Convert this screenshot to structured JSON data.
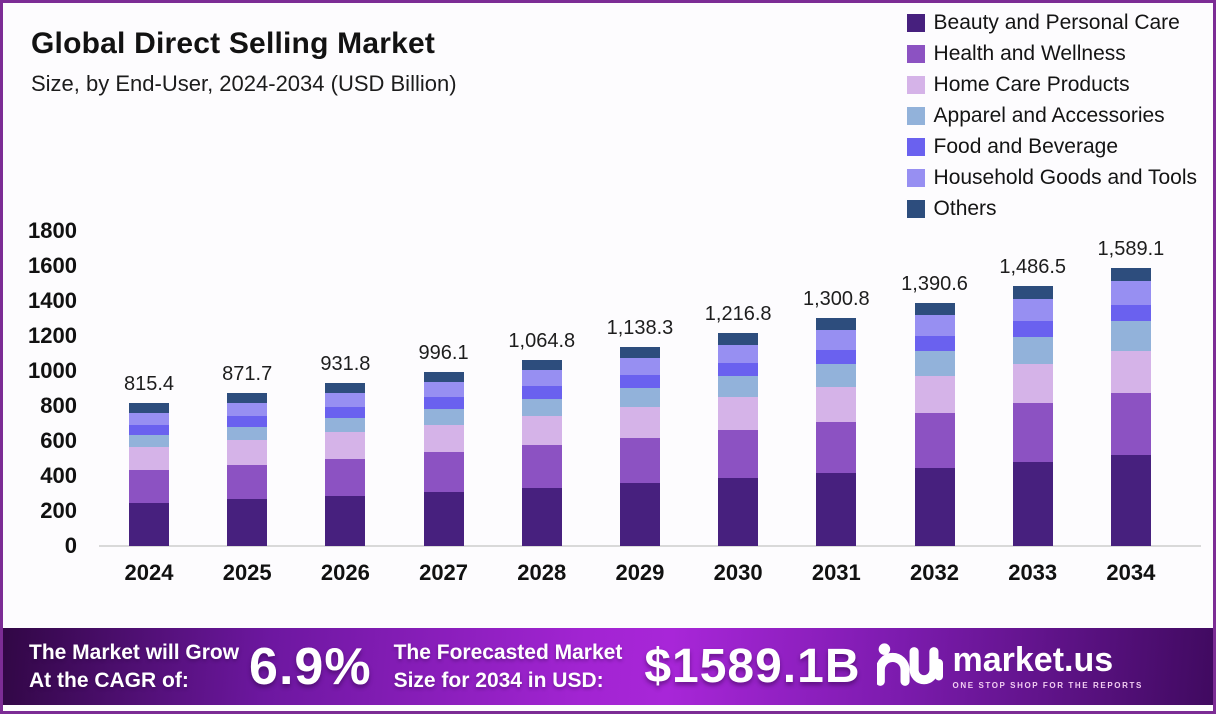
{
  "header": {
    "title": "Global Direct Selling Market",
    "subtitle": "Size, by End-User, 2024-2034 (USD Billion)"
  },
  "legend": {
    "position": "top-right",
    "items": [
      {
        "label": "Beauty and Personal Care",
        "color": "#47207E"
      },
      {
        "label": "Health and Wellness",
        "color": "#8C52C2"
      },
      {
        "label": "Home Care Products",
        "color": "#D5B3E8"
      },
      {
        "label": "Apparel and Accessories",
        "color": "#92B2DA"
      },
      {
        "label": "Food and Beverage",
        "color": "#6A61EF"
      },
      {
        "label": "Household Goods and Tools",
        "color": "#978FF2"
      },
      {
        "label": "Others",
        "color": "#2D4D7D"
      }
    ]
  },
  "chart_data": {
    "type": "bar",
    "stacked": true,
    "title": "Global Direct Selling Market Size, by End-User, 2024-2034 (USD Billion)",
    "xlabel": "",
    "ylabel": "USD Billion",
    "ylim": [
      0,
      1800
    ],
    "yticks": [
      0,
      200,
      400,
      600,
      800,
      1000,
      1200,
      1400,
      1600,
      1800
    ],
    "grid": false,
    "legend_position": "top-right",
    "categories": [
      "2024",
      "2025",
      "2026",
      "2027",
      "2028",
      "2029",
      "2030",
      "2031",
      "2032",
      "2033",
      "2034"
    ],
    "totals": [
      815.4,
      871.7,
      931.8,
      996.1,
      1064.8,
      1138.3,
      1216.8,
      1300.8,
      1390.6,
      1486.5,
      1589.1
    ],
    "total_labels": [
      "815.4",
      "871.7",
      "931.8",
      "996.1",
      "1,064.8",
      "1,138.3",
      "1,216.8",
      "1,300.8",
      "1,390.6",
      "1,486.5",
      "1,589.1"
    ],
    "series": [
      {
        "name": "Beauty and Personal Care",
        "color": "#47207E",
        "values": [
          248.7,
          267.8,
          288.3,
          310.4,
          334.1,
          359.7,
          387.2,
          416.8,
          448.6,
          482.8,
          519.6
        ]
      },
      {
        "name": "Health and Wellness",
        "color": "#8C52C2",
        "values": [
          185.1,
          197.7,
          211.2,
          225.5,
          240.9,
          257.3,
          274.8,
          293.5,
          313.4,
          334.8,
          357.5
        ]
      },
      {
        "name": "Home Care Products",
        "color": "#D5B3E8",
        "values": [
          132.9,
          141.0,
          149.5,
          158.5,
          168.0,
          178.1,
          188.8,
          200.2,
          212.2,
          224.9,
          238.4
        ]
      },
      {
        "name": "Apparel and Accessories",
        "color": "#92B2DA",
        "values": [
          69.3,
          75.9,
          83.1,
          90.9,
          99.5,
          108.7,
          118.8,
          129.7,
          141.6,
          154.4,
          168.4
        ]
      },
      {
        "name": "Food and Beverage",
        "color": "#6A61EF",
        "values": [
          57.9,
          60.7,
          63.5,
          66.5,
          69.6,
          72.9,
          76.2,
          79.6,
          83.2,
          86.8,
          90.6
        ]
      },
      {
        "name": "Household Goods and Tools",
        "color": "#978FF2",
        "values": [
          69.3,
          74.3,
          79.6,
          85.3,
          91.4,
          97.9,
          104.9,
          112.4,
          120.4,
          129.0,
          138.3
        ]
      },
      {
        "name": "Others",
        "color": "#2D4D7D",
        "values": [
          52.2,
          54.3,
          56.6,
          59.0,
          61.3,
          63.7,
          66.1,
          68.6,
          71.2,
          73.8,
          76.3
        ]
      }
    ]
  },
  "footer": {
    "cagr_line1": "The Market will Grow",
    "cagr_line2": "At the CAGR of:",
    "cagr_value": "6.9%",
    "forecast_line1": "The Forecasted Market",
    "forecast_line2": "Size for 2034 in USD:",
    "forecast_value": "$1589.1B",
    "brand": "market.us",
    "brand_tagline": "ONE STOP SHOP FOR THE REPORTS"
  },
  "colors": {
    "page_border": "#7c2c95",
    "background": "#fdfcfe",
    "axis_line": "#d9d9d9",
    "text": "#141414",
    "banner_center": "#a826d8",
    "banner_edge": "#310745"
  }
}
